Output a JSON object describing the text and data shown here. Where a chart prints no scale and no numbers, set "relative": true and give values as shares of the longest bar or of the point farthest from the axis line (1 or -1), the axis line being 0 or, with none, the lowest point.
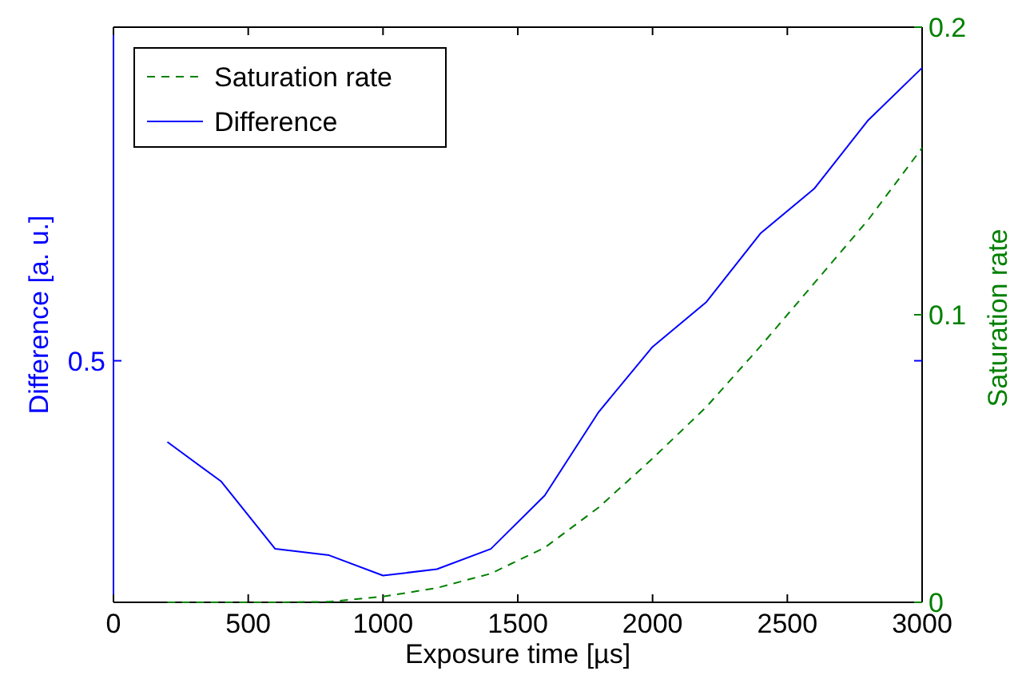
{
  "chart_data": {
    "type": "line",
    "xlabel": "Exposure time [µs]",
    "ylabel": "Difference [a. u.]",
    "y2label": "Saturation rate",
    "x": [
      200,
      400,
      600,
      800,
      1000,
      1200,
      1400,
      1600,
      1800,
      2000,
      2200,
      2400,
      2600,
      2800,
      3000
    ],
    "xlim": [
      0,
      3000
    ],
    "xticks": [
      0,
      500,
      1000,
      1500,
      2000,
      2500,
      3000
    ],
    "relative": true,
    "annotations": [
      "0.5"
    ],
    "y2lim": [
      0,
      0.2
    ],
    "y2ticks": [
      0,
      0.1,
      0.2
    ],
    "legend": "top left",
    "grid": false,
    "series": [
      {
        "name": "Saturation rate",
        "color": "#008000",
        "axis": "y2",
        "line_style": "dashed",
        "values": [
          0,
          0,
          0,
          0.0002,
          0.002,
          0.005,
          0.01,
          0.019,
          0.033,
          0.05,
          0.068,
          0.089,
          0.111,
          0.133,
          0.158
        ]
      },
      {
        "name": "Difference",
        "color": "#0000ff",
        "line_style": "solid",
        "values": [
          0.3,
          0.226,
          0.1,
          0.088,
          0.05,
          0.062,
          0.1,
          0.2,
          0.356,
          0.478,
          0.562,
          0.69,
          0.774,
          0.902,
          1
        ]
      }
    ]
  }
}
